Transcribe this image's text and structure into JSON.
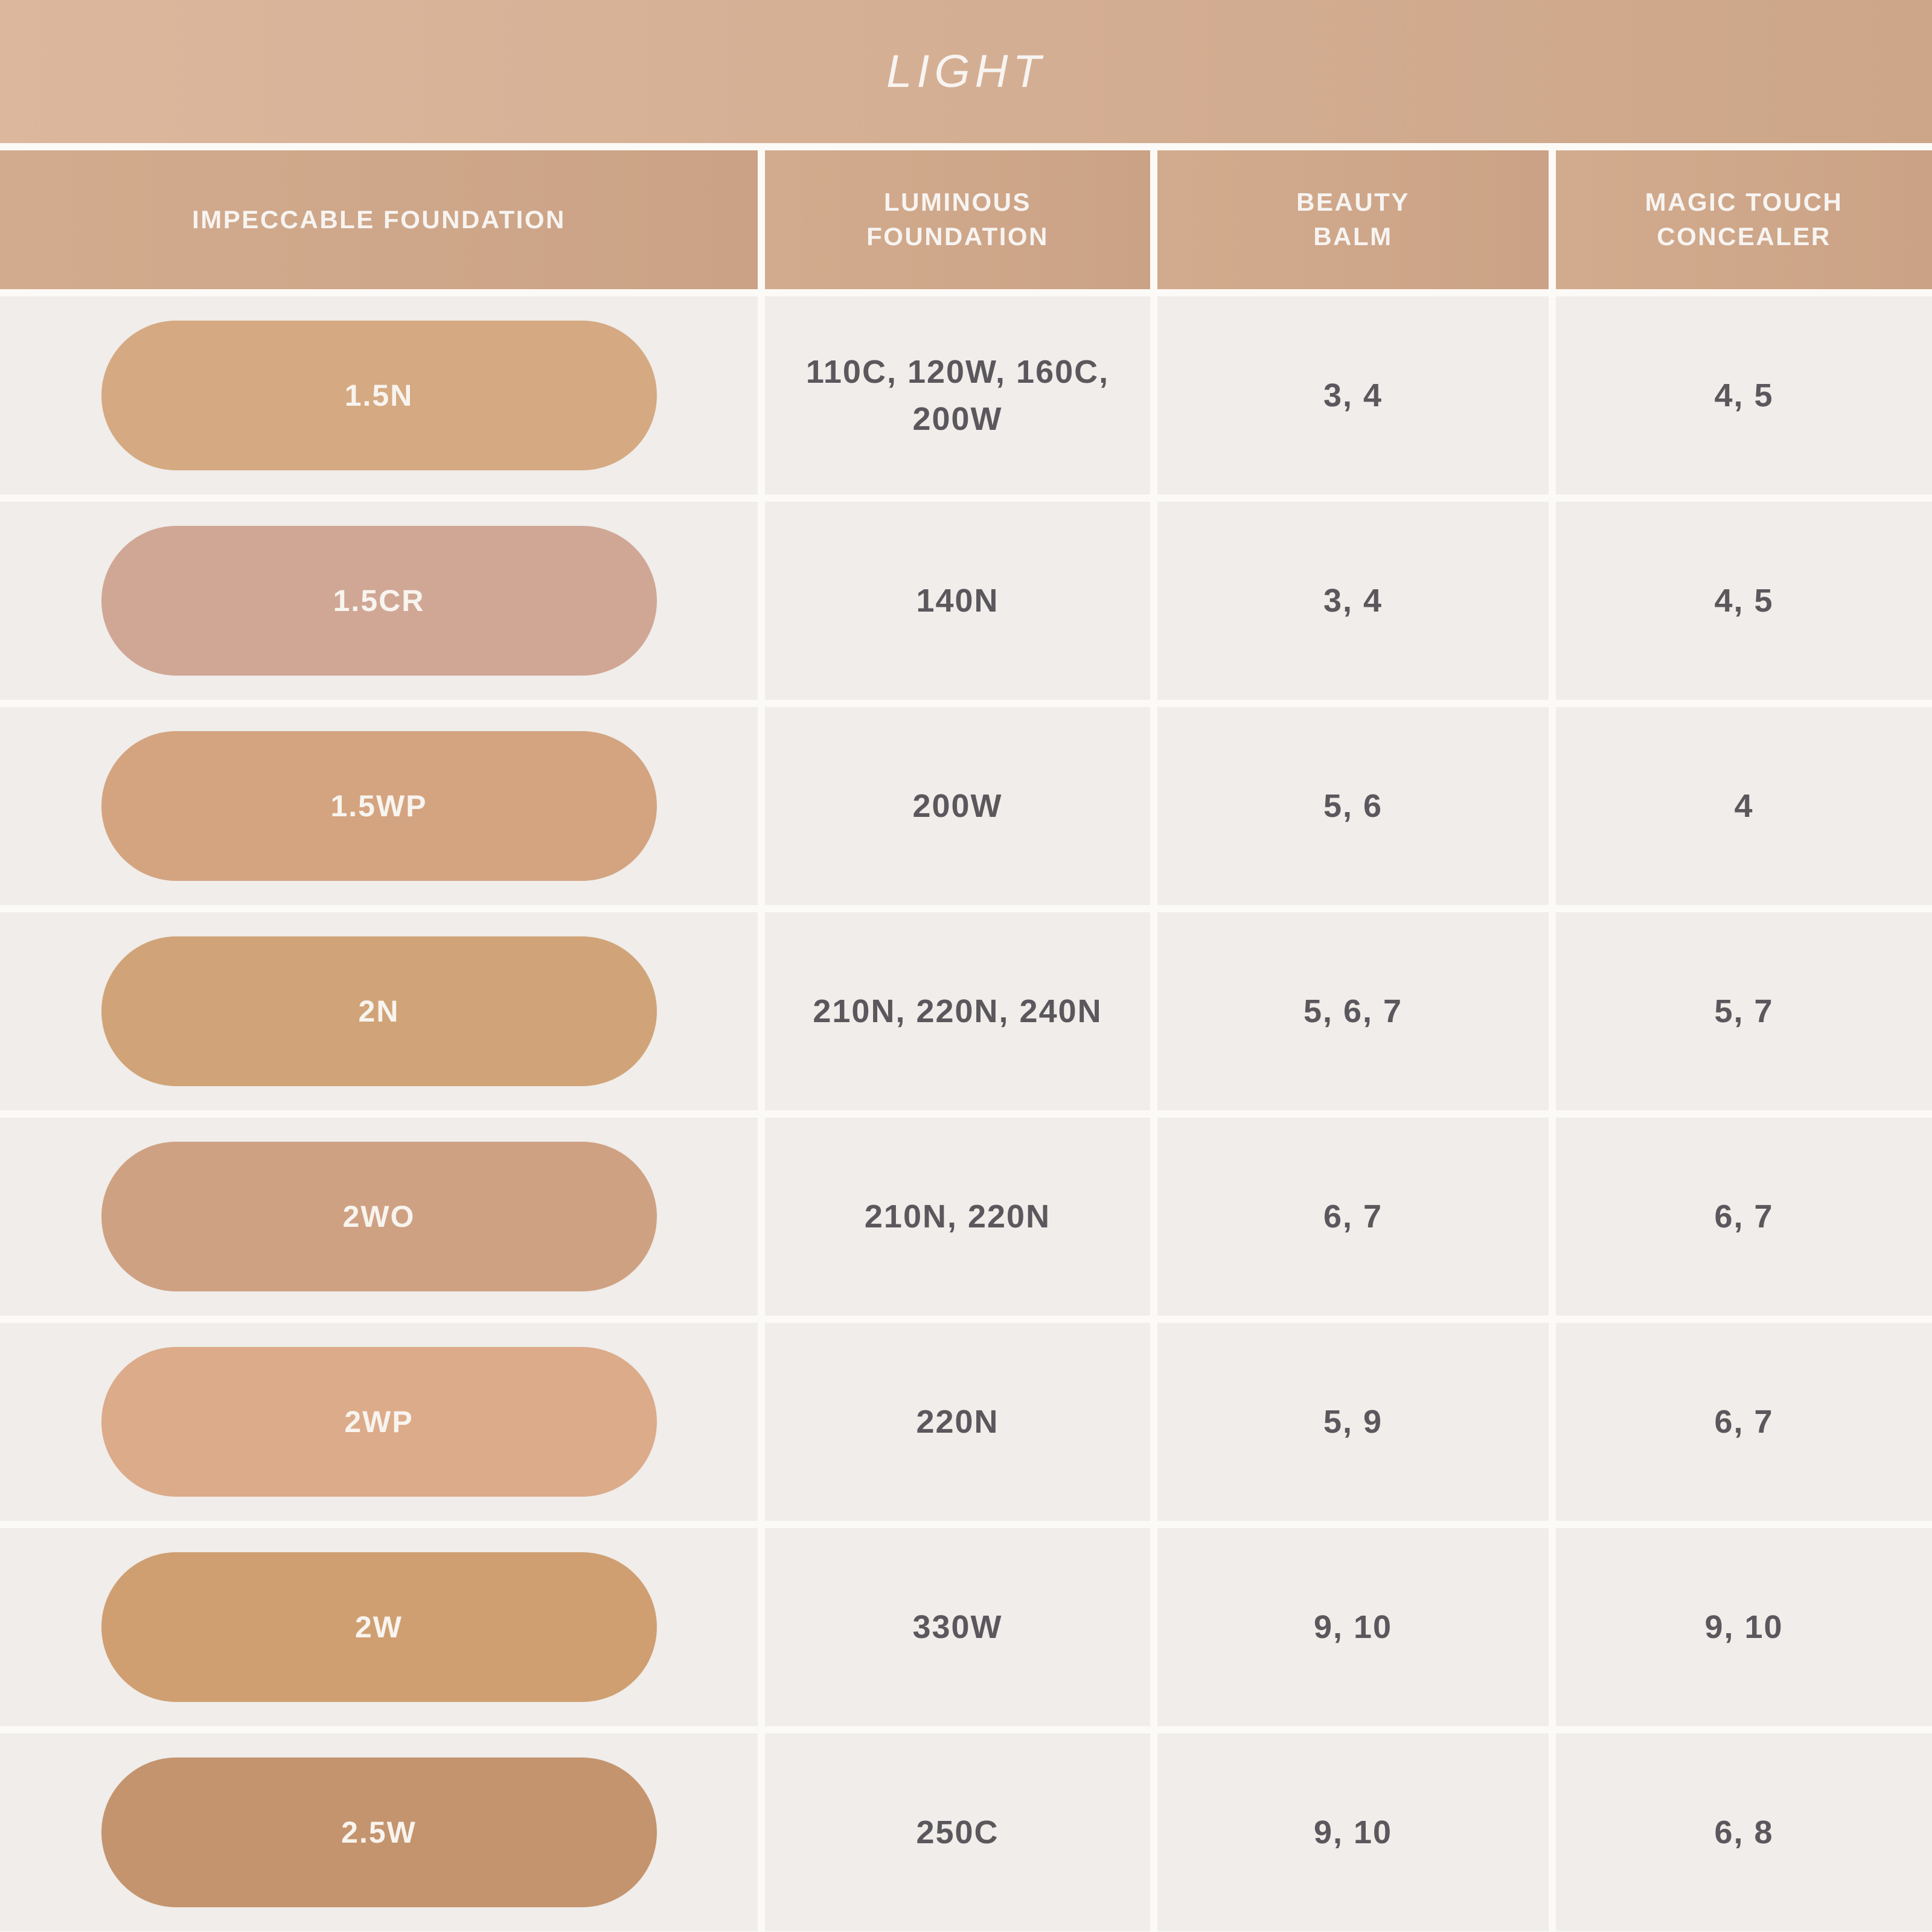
{
  "title": "LIGHT",
  "chart_data": {
    "type": "table",
    "title": "LIGHT",
    "columns": [
      "IMPECCABLE FOUNDATION",
      "LUMINOUS\nFOUNDATION",
      "BEAUTY\nBALM",
      "MAGIC TOUCH\nCONCEALER"
    ],
    "rows": [
      {
        "shade": "1.5N",
        "swatch_hex": "#d5a981",
        "luminous_foundation": "110C, 120W, 160C,\n200W",
        "beauty_balm": "3, 4",
        "magic_touch_concealer": "4, 5"
      },
      {
        "shade": "1.5CR",
        "swatch_hex": "#d0a795",
        "luminous_foundation": "140N",
        "beauty_balm": "3, 4",
        "magic_touch_concealer": "4, 5"
      },
      {
        "shade": "1.5WP",
        "swatch_hex": "#d4a480",
        "luminous_foundation": "200W",
        "beauty_balm": "5, 6",
        "magic_touch_concealer": "4"
      },
      {
        "shade": "2N",
        "swatch_hex": "#d0a478",
        "luminous_foundation": "210N, 220N, 240N",
        "beauty_balm": "5, 6, 7",
        "magic_touch_concealer": "5, 7"
      },
      {
        "shade": "2WO",
        "swatch_hex": "#cfa183",
        "luminous_foundation": "210N, 220N",
        "beauty_balm": "6, 7",
        "magic_touch_concealer": "6, 7"
      },
      {
        "shade": "2WP",
        "swatch_hex": "#dcab8a",
        "luminous_foundation": "220N",
        "beauty_balm": "5, 9",
        "magic_touch_concealer": "6, 7"
      },
      {
        "shade": "2W",
        "swatch_hex": "#cf9f72",
        "luminous_foundation": "330W",
        "beauty_balm": "9, 10",
        "magic_touch_concealer": "9, 10"
      },
      {
        "shade": "2.5W",
        "swatch_hex": "#c4946e",
        "luminous_foundation": "250C",
        "beauty_balm": "9, 10",
        "magic_touch_concealer": "6, 8"
      }
    ]
  },
  "colors": {
    "banner_gradient_left": "#dcb79d",
    "banner_gradient_right": "#cda689",
    "header_cell_tan": "#cfa88b",
    "row_cell_bg": "#f0edea",
    "page_gap_white": "#fcfaf7",
    "cell_text_gray": "#5a585c",
    "header_text_white": "#f7f4f1",
    "swatch_label_white": "#f8f4ef"
  }
}
